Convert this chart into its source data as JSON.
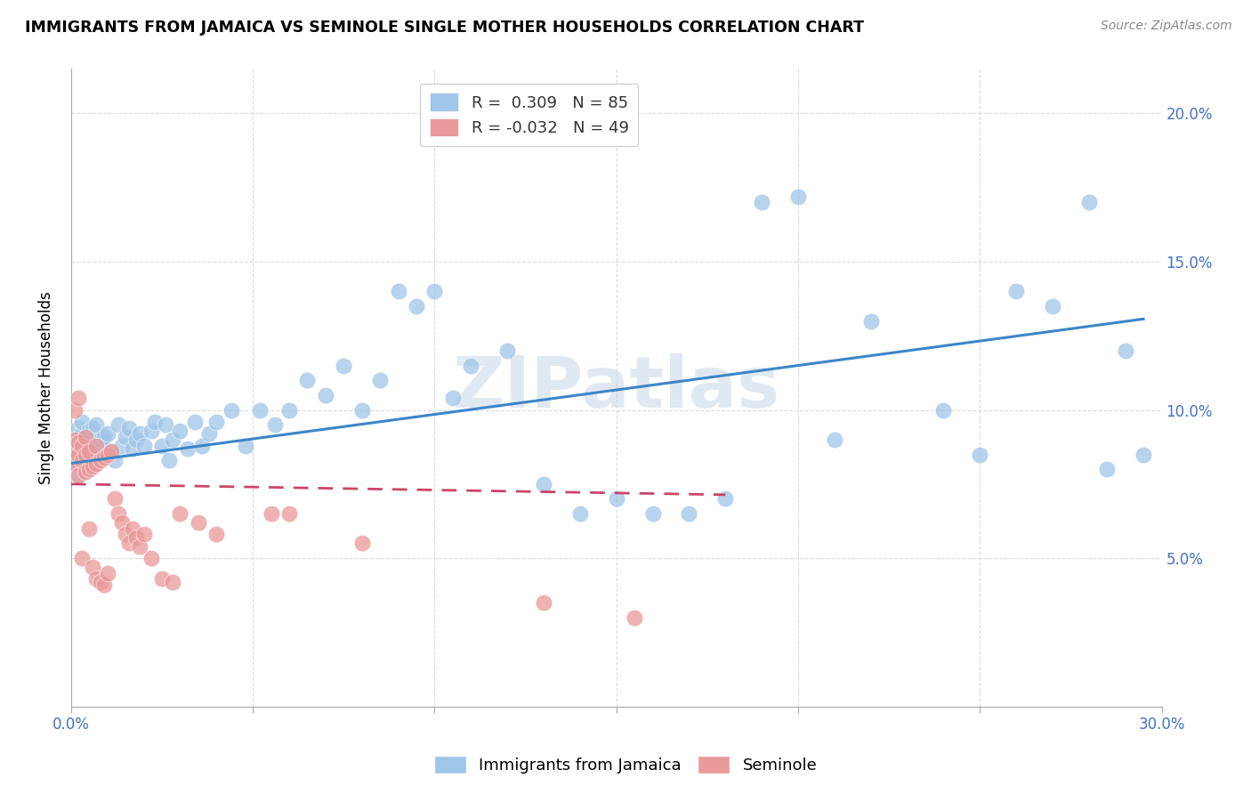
{
  "title": "IMMIGRANTS FROM JAMAICA VS SEMINOLE SINGLE MOTHER HOUSEHOLDS CORRELATION CHART",
  "source": "Source: ZipAtlas.com",
  "ylabel": "Single Mother Households",
  "r1": 0.309,
  "n1": 85,
  "r2": -0.032,
  "n2": 49,
  "color_blue": "#9fc5e8",
  "color_pink": "#ea9999",
  "trendline_blue": "#3d85c8",
  "trendline_pink": "#cc4466",
  "watermark": "ZIPatlas",
  "xlim": [
    0.0,
    0.3
  ],
  "ylim": [
    0.0,
    0.215
  ],
  "blue_intercept": 0.082,
  "blue_slope": 0.165,
  "pink_intercept": 0.075,
  "pink_slope": -0.02,
  "blue_x": [
    0.001,
    0.001,
    0.001,
    0.002,
    0.002,
    0.002,
    0.002,
    0.003,
    0.003,
    0.003,
    0.003,
    0.004,
    0.004,
    0.004,
    0.005,
    0.005,
    0.005,
    0.006,
    0.006,
    0.006,
    0.007,
    0.007,
    0.007,
    0.008,
    0.008,
    0.009,
    0.009,
    0.01,
    0.01,
    0.011,
    0.012,
    0.013,
    0.014,
    0.015,
    0.016,
    0.017,
    0.018,
    0.019,
    0.02,
    0.022,
    0.023,
    0.025,
    0.026,
    0.027,
    0.028,
    0.03,
    0.032,
    0.034,
    0.036,
    0.038,
    0.04,
    0.044,
    0.048,
    0.052,
    0.056,
    0.06,
    0.065,
    0.07,
    0.075,
    0.08,
    0.085,
    0.09,
    0.095,
    0.1,
    0.105,
    0.11,
    0.12,
    0.13,
    0.14,
    0.15,
    0.16,
    0.17,
    0.18,
    0.19,
    0.2,
    0.21,
    0.22,
    0.24,
    0.25,
    0.26,
    0.27,
    0.28,
    0.285,
    0.29,
    0.295
  ],
  "blue_y": [
    0.082,
    0.086,
    0.09,
    0.078,
    0.085,
    0.089,
    0.094,
    0.083,
    0.088,
    0.092,
    0.096,
    0.079,
    0.085,
    0.091,
    0.08,
    0.086,
    0.093,
    0.081,
    0.087,
    0.094,
    0.082,
    0.088,
    0.095,
    0.083,
    0.09,
    0.084,
    0.091,
    0.085,
    0.092,
    0.086,
    0.083,
    0.095,
    0.088,
    0.091,
    0.094,
    0.087,
    0.09,
    0.092,
    0.088,
    0.093,
    0.096,
    0.088,
    0.095,
    0.083,
    0.09,
    0.093,
    0.087,
    0.096,
    0.088,
    0.092,
    0.096,
    0.1,
    0.088,
    0.1,
    0.095,
    0.1,
    0.11,
    0.105,
    0.115,
    0.1,
    0.11,
    0.14,
    0.135,
    0.14,
    0.104,
    0.115,
    0.12,
    0.075,
    0.065,
    0.07,
    0.065,
    0.065,
    0.07,
    0.17,
    0.172,
    0.09,
    0.13,
    0.1,
    0.085,
    0.14,
    0.135,
    0.17,
    0.08,
    0.12,
    0.085
  ],
  "pink_x": [
    0.001,
    0.001,
    0.001,
    0.001,
    0.002,
    0.002,
    0.002,
    0.002,
    0.003,
    0.003,
    0.003,
    0.004,
    0.004,
    0.004,
    0.005,
    0.005,
    0.005,
    0.006,
    0.006,
    0.007,
    0.007,
    0.007,
    0.008,
    0.008,
    0.009,
    0.009,
    0.01,
    0.01,
    0.011,
    0.012,
    0.013,
    0.014,
    0.015,
    0.016,
    0.017,
    0.018,
    0.019,
    0.02,
    0.022,
    0.025,
    0.028,
    0.03,
    0.035,
    0.04,
    0.055,
    0.06,
    0.08,
    0.13,
    0.155
  ],
  "pink_y": [
    0.082,
    0.086,
    0.09,
    0.1,
    0.078,
    0.085,
    0.089,
    0.104,
    0.083,
    0.088,
    0.05,
    0.079,
    0.085,
    0.091,
    0.08,
    0.086,
    0.06,
    0.081,
    0.047,
    0.082,
    0.088,
    0.043,
    0.083,
    0.042,
    0.084,
    0.041,
    0.045,
    0.085,
    0.086,
    0.07,
    0.065,
    0.062,
    0.058,
    0.055,
    0.06,
    0.057,
    0.054,
    0.058,
    0.05,
    0.043,
    0.042,
    0.065,
    0.062,
    0.058,
    0.065,
    0.065,
    0.055,
    0.035,
    0.03
  ]
}
